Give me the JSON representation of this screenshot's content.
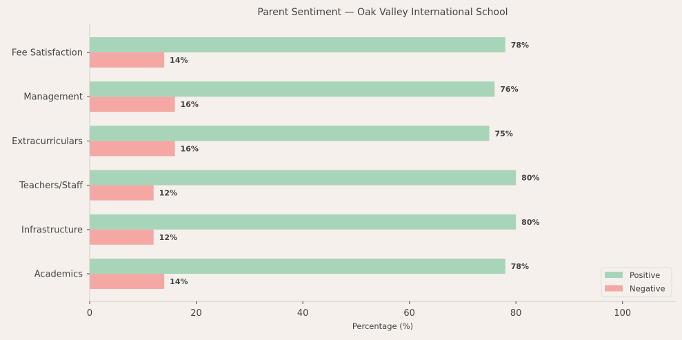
{
  "chart_data": {
    "type": "bar",
    "orientation": "horizontal",
    "title": "Parent Sentiment — Oak Valley International School",
    "xlabel": "Percentage (%)",
    "ylabel": "",
    "xlim": [
      0,
      110
    ],
    "xticks": [
      0,
      20,
      40,
      60,
      80,
      100
    ],
    "categories": [
      "Fee Satisfaction",
      "Management",
      "Extracurriculars",
      "Teachers/Staff",
      "Infrastructure",
      "Academics"
    ],
    "series": [
      {
        "name": "Positive",
        "values": [
          78,
          76,
          75,
          80,
          80,
          78
        ],
        "color": "#a8d5ba"
      },
      {
        "name": "Negative",
        "values": [
          14,
          16,
          16,
          12,
          12,
          14
        ],
        "color": "#f5a8a3"
      }
    ],
    "value_label_suffix": "%",
    "grid": false,
    "legend": "bottom-right",
    "background": "#f5f0ec"
  }
}
